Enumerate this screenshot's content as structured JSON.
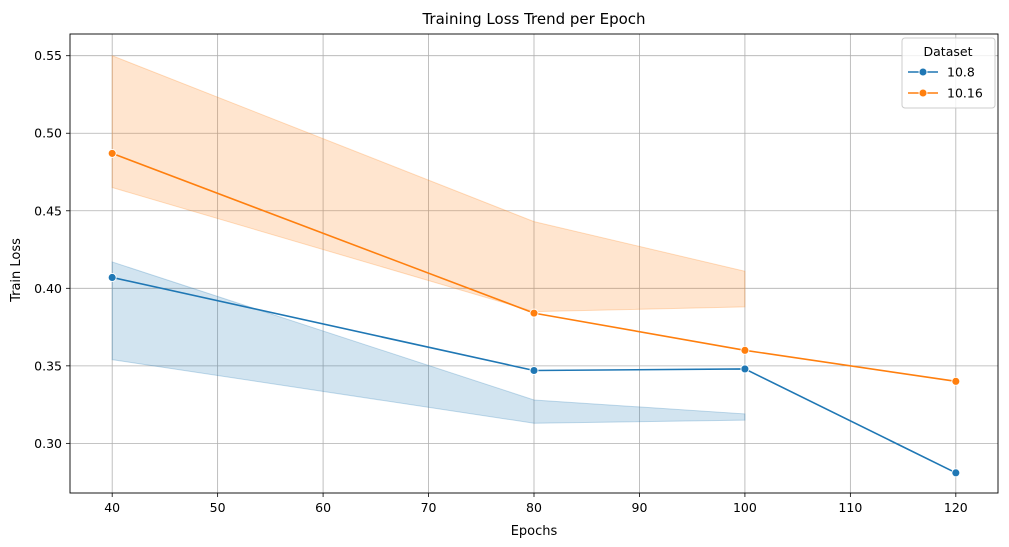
{
  "chart_data": {
    "type": "line",
    "title": "Training Loss Trend per Epoch",
    "xlabel": "Epochs",
    "ylabel": "Train Loss",
    "xlim": [
      36,
      124
    ],
    "ylim": [
      0.268,
      0.564
    ],
    "xticks": [
      40,
      50,
      60,
      70,
      80,
      90,
      100,
      110,
      120
    ],
    "yticks": [
      0.3,
      0.35,
      0.4,
      0.45,
      0.5,
      0.55
    ],
    "grid": true,
    "legend": {
      "title": "Dataset",
      "placement": "top-right"
    },
    "series": [
      {
        "name": "10.8",
        "color": "#1f77b4",
        "x": [
          40,
          80,
          100,
          120
        ],
        "values": [
          0.407,
          0.347,
          0.348,
          0.281
        ],
        "ci_x": [
          40,
          80,
          100
        ],
        "ci_lower": [
          0.354,
          0.313,
          0.315
        ],
        "ci_upper": [
          0.417,
          0.328,
          0.319
        ]
      },
      {
        "name": "10.16",
        "color": "#ff7f0e",
        "x": [
          40,
          80,
          100,
          120
        ],
        "values": [
          0.487,
          0.384,
          0.36,
          0.34
        ],
        "ci_x": [
          40,
          80,
          100
        ],
        "ci_lower": [
          0.465,
          0.385,
          0.388
        ],
        "ci_upper": [
          0.55,
          0.443,
          0.411
        ]
      }
    ]
  }
}
